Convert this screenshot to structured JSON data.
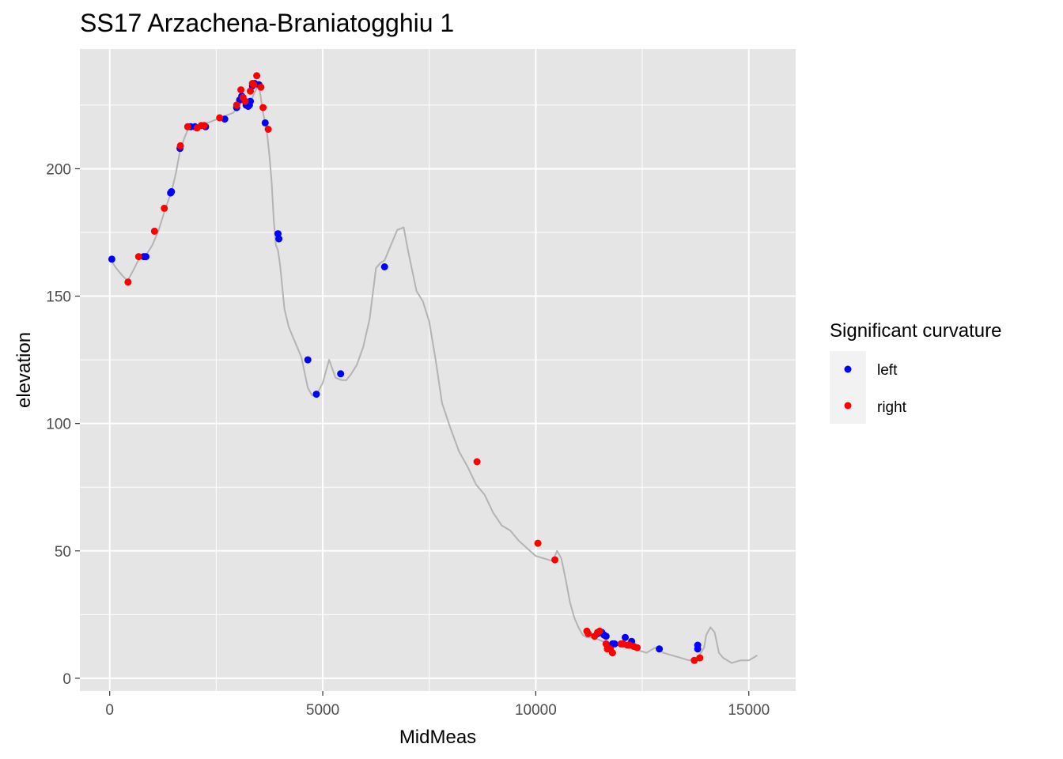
{
  "chart_data": {
    "type": "scatter",
    "title": "SS17 Arzachena-Braniatogghiu 1",
    "xlabel": "MidMeas",
    "ylabel": "elevation",
    "xlim": [
      -700,
      16100
    ],
    "ylim": [
      -5,
      247
    ],
    "x_ticks": [
      0,
      5000,
      10000,
      15000
    ],
    "x_tick_labels": [
      "0",
      "5000",
      "10000",
      "15000"
    ],
    "y_ticks": [
      0,
      50,
      100,
      150,
      200
    ],
    "y_tick_labels": [
      "0",
      "50",
      "100",
      "150",
      "200"
    ],
    "grid": true,
    "legend_position": "right",
    "legend_title": "Significant curvature",
    "colors": {
      "panel": "#e5e5e5",
      "grid": "#ffffff",
      "profile_line": "#b3b3b3",
      "left": "#0000ff",
      "right": "#ff0000"
    },
    "profile_line": {
      "x": [
        30,
        150,
        300,
        420,
        550,
        700,
        850,
        1000,
        1150,
        1300,
        1450,
        1550,
        1650,
        1750,
        1850,
        2000,
        2150,
        2300,
        2450,
        2600,
        2750,
        2900,
        3000,
        3100,
        3200,
        3300,
        3400,
        3500,
        3600,
        3650,
        3700,
        3750,
        3800,
        3850,
        3900,
        3950,
        4000,
        4100,
        4200,
        4300,
        4400,
        4500,
        4650,
        4750,
        4850,
        5000,
        5150,
        5300,
        5450,
        5550,
        5650,
        5800,
        5950,
        6100,
        6250,
        6350,
        6450,
        6600,
        6750,
        6900,
        7000,
        7100,
        7200,
        7350,
        7500,
        7650,
        7800,
        8000,
        8200,
        8400,
        8600,
        8800,
        9000,
        9200,
        9400,
        9600,
        9800,
        10000,
        10200,
        10400,
        10500,
        10600,
        10700,
        10800,
        10900,
        11000,
        11100,
        11200,
        11350,
        11500,
        11650,
        11800,
        12000,
        12200,
        12400,
        12600,
        12800,
        13000,
        13200,
        13400,
        13600,
        13800,
        13950,
        14000,
        14100,
        14200,
        14300,
        14400,
        14600,
        14800,
        15000,
        15100,
        15200
      ],
      "y": [
        164,
        161,
        158,
        156,
        160,
        165,
        166,
        170,
        176,
        184,
        191,
        198,
        207,
        212,
        216,
        217,
        217,
        218,
        219,
        220,
        221,
        222,
        224,
        226,
        227,
        226,
        230,
        233,
        222,
        218,
        213,
        205,
        195,
        180,
        170,
        168,
        162,
        145,
        138,
        134,
        130,
        126,
        114,
        111,
        111,
        116,
        125,
        118,
        117,
        117,
        119,
        123,
        130,
        141,
        161,
        163,
        164,
        170,
        176,
        177,
        168,
        160,
        152,
        148,
        140,
        125,
        108,
        98,
        89,
        83,
        76,
        72,
        65,
        60,
        58,
        54,
        51,
        48,
        47,
        46,
        50,
        47,
        39,
        30,
        24,
        20,
        17,
        16,
        16,
        15,
        14,
        13,
        13,
        12,
        11,
        10,
        12,
        10,
        9,
        8,
        7,
        8,
        12,
        17,
        20,
        18,
        10,
        8,
        6,
        7,
        7,
        8,
        9
      ]
    },
    "series": [
      {
        "name": "left",
        "color": "#0000ff",
        "x": [
          50,
          800,
          850,
          1450,
          1430,
          1650,
          1900,
          2000,
          2250,
          2700,
          2980,
          3050,
          3100,
          3200,
          3250,
          3300,
          3280,
          3350,
          3400,
          3500,
          3650,
          3950,
          3970,
          4650,
          4850,
          5420,
          6450,
          11450,
          11550,
          11600,
          11650,
          11800,
          11850,
          12100,
          12250,
          12900,
          13800,
          13800
        ],
        "y": [
          164.5,
          165.5,
          165.5,
          191,
          190.5,
          208,
          216.5,
          216.5,
          216.5,
          219.5,
          224,
          227,
          228.5,
          225,
          224.5,
          226.5,
          225,
          232.5,
          233.5,
          233,
          218,
          174.5,
          172.5,
          125,
          111.5,
          119.5,
          161.5,
          17.5,
          18,
          17,
          16.5,
          13.5,
          13.5,
          16,
          14.5,
          11.5,
          13,
          11.5
        ]
      },
      {
        "name": "right",
        "color": "#ff0000",
        "x": [
          430,
          680,
          1050,
          1280,
          1660,
          1830,
          2050,
          2150,
          2220,
          2580,
          2980,
          3080,
          3130,
          3180,
          3300,
          3350,
          3380,
          3450,
          3550,
          3600,
          3720,
          8620,
          10050,
          10450,
          11200,
          11230,
          11380,
          11450,
          11500,
          11650,
          11680,
          11750,
          11800,
          12000,
          12050,
          12150,
          12200,
          12300,
          12380,
          13720,
          13850
        ],
        "y": [
          155.5,
          165.5,
          175.5,
          184.5,
          209,
          216.5,
          216,
          217,
          217,
          220,
          225,
          231,
          228,
          226.5,
          230.5,
          233.5,
          233,
          236.5,
          232,
          224,
          215.5,
          85,
          53,
          46.5,
          18.5,
          17.5,
          16.5,
          18,
          18.5,
          13.5,
          11.5,
          11.5,
          10,
          13.5,
          13.5,
          13,
          13,
          12.5,
          12,
          7,
          8
        ]
      }
    ]
  }
}
